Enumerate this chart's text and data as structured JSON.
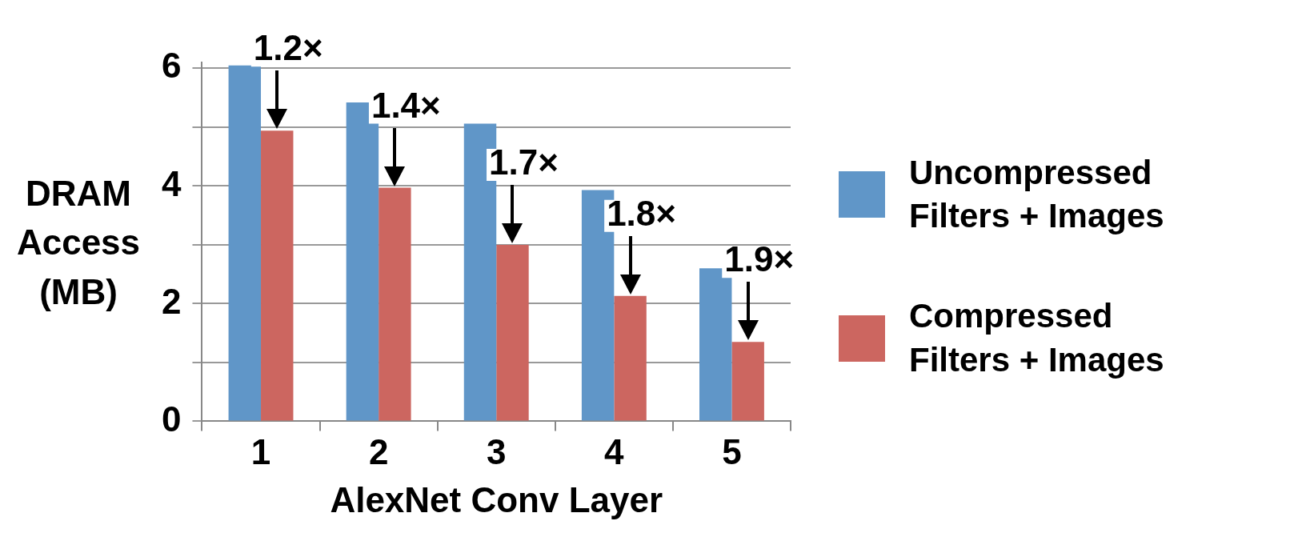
{
  "chart_data": {
    "type": "bar",
    "categories": [
      "1",
      "2",
      "3",
      "4",
      "5"
    ],
    "series": [
      {
        "name": "Uncompressed Filters + Images",
        "color": "#6096c8",
        "values": [
          6.05,
          5.42,
          5.06,
          3.93,
          2.6
        ]
      },
      {
        "name": "Compressed Filters + Images",
        "color": "#cc6660",
        "values": [
          4.94,
          3.97,
          3.0,
          2.13,
          1.35
        ]
      }
    ],
    "xlabel": "AlexNet Conv Layer",
    "ylabel": "DRAM Access (MB)",
    "ylim": [
      0,
      6.1
    ],
    "yticks": [
      0,
      {
        "value": 1,
        "label": null
      },
      2,
      {
        "value": 3,
        "label": null
      },
      4,
      {
        "value": 5,
        "label": null
      },
      6
    ],
    "grid": "y",
    "legend": "right",
    "annotations": [
      {
        "text": "1.2×",
        "x": "1",
        "y": 4.94
      },
      {
        "text": "1.4×",
        "x": "2",
        "y": 3.97
      },
      {
        "text": "1.7×",
        "x": "3",
        "y": 3.0
      },
      {
        "text": "1.8×",
        "x": "4",
        "y": 2.13
      },
      {
        "text": "1.9×",
        "x": "5",
        "y": 1.35
      }
    ]
  }
}
